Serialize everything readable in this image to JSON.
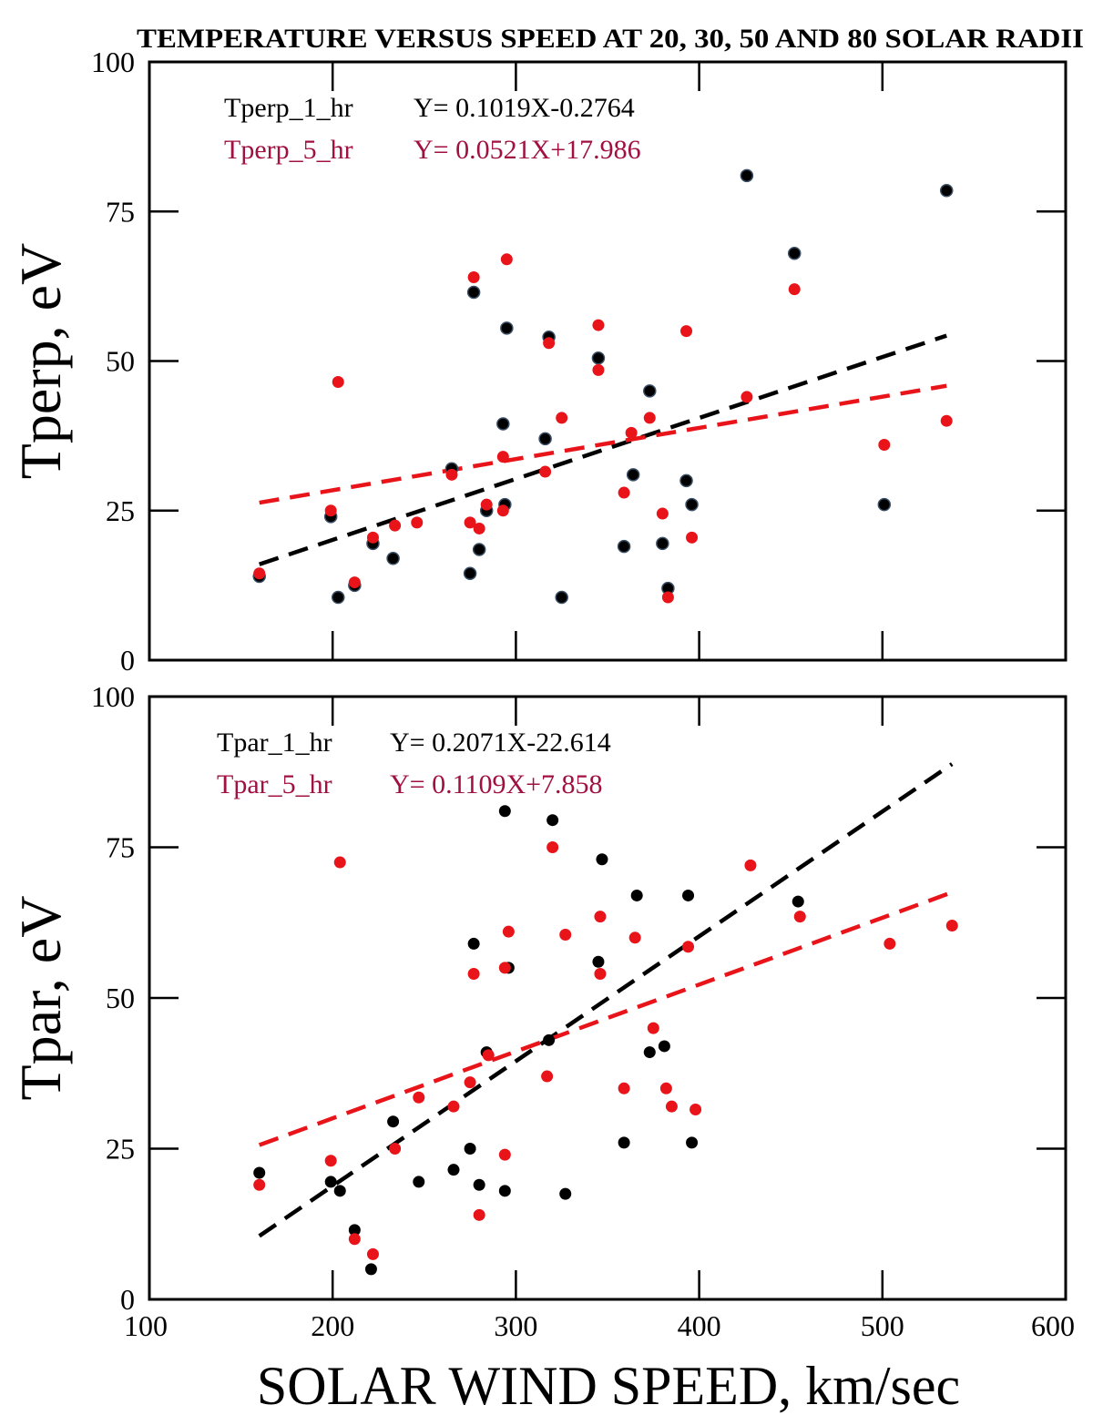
{
  "title": "TEMPERATURE VERSUS SPEED AT 20, 30, 50 AND 80 SOLAR RADII",
  "xlabel": "SOLAR WIND SPEED, km/sec",
  "colors": {
    "series_1hr": "#000000",
    "series_5hr": "#e8141a",
    "legend_5hr": "#a01040"
  },
  "chart_data": [
    {
      "type": "scatter",
      "title": "",
      "xlabel": "SOLAR WIND SPEED, km/sec",
      "ylabel": "Tperp, eV",
      "xlim": [
        100,
        600
      ],
      "ylim": [
        0,
        100
      ],
      "xticks": [
        "100",
        "200",
        "300",
        "400",
        "500",
        "600"
      ],
      "yticks": [
        "0",
        "25",
        "50",
        "75",
        "100"
      ],
      "series": [
        {
          "name": "Tperp_1_hr",
          "fit": "Y= 0.1019X-0.2764",
          "slope": 0.1019,
          "intercept": -0.2764,
          "fit_range": [
            160,
            535
          ],
          "points": [
            [
              160,
              14
            ],
            [
              199,
              24
            ],
            [
              203,
              10.5
            ],
            [
              212,
              12.5
            ],
            [
              222,
              19.5
            ],
            [
              233,
              17
            ],
            [
              265,
              32
            ],
            [
              275,
              14.5
            ],
            [
              277,
              61.5
            ],
            [
              280,
              18.5
            ],
            [
              284,
              25
            ],
            [
              293,
              39.5
            ],
            [
              294,
              26
            ],
            [
              295,
              55.5
            ],
            [
              316,
              37
            ],
            [
              318,
              54
            ],
            [
              325,
              10.5
            ],
            [
              345,
              50.5
            ],
            [
              359,
              19
            ],
            [
              364,
              31
            ],
            [
              373,
              45
            ],
            [
              380,
              19.5
            ],
            [
              383,
              12
            ],
            [
              393,
              30
            ],
            [
              396,
              26
            ],
            [
              426,
              81
            ],
            [
              452,
              68
            ],
            [
              501,
              26
            ],
            [
              535,
              78.5
            ]
          ]
        },
        {
          "name": "Tperp_5_hr",
          "fit": "Y= 0.0521X+17.986",
          "slope": 0.0521,
          "intercept": 17.986,
          "fit_range": [
            160,
            535
          ],
          "points": [
            [
              160,
              14.5
            ],
            [
              199,
              25
            ],
            [
              203,
              46.5
            ],
            [
              212,
              13
            ],
            [
              222,
              20.5
            ],
            [
              234,
              22.5
            ],
            [
              246,
              23
            ],
            [
              265,
              31
            ],
            [
              275,
              23
            ],
            [
              277,
              64
            ],
            [
              280,
              22
            ],
            [
              284,
              26
            ],
            [
              293,
              25
            ],
            [
              293,
              34
            ],
            [
              295,
              67
            ],
            [
              316,
              31.5
            ],
            [
              318,
              53
            ],
            [
              325,
              40.5
            ],
            [
              345,
              56
            ],
            [
              345,
              48.5
            ],
            [
              359,
              28
            ],
            [
              363,
              38
            ],
            [
              373,
              40.5
            ],
            [
              380,
              24.5
            ],
            [
              383,
              10.5
            ],
            [
              393,
              55
            ],
            [
              396,
              20.5
            ],
            [
              426,
              44
            ],
            [
              452,
              62
            ],
            [
              501,
              36
            ],
            [
              535,
              40
            ]
          ]
        }
      ]
    },
    {
      "type": "scatter",
      "title": "",
      "xlabel": "SOLAR WIND SPEED, km/sec",
      "ylabel": "Tpar, eV",
      "xlim": [
        100,
        600
      ],
      "ylim": [
        0,
        100
      ],
      "xticks": [
        "100",
        "200",
        "300",
        "400",
        "500",
        "600"
      ],
      "yticks": [
        "0",
        "25",
        "50",
        "75",
        "100"
      ],
      "series": [
        {
          "name": "Tpar_1_hr",
          "fit": "Y= 0.2071X-22.614",
          "slope": 0.2071,
          "intercept": -22.614,
          "fit_range": [
            160,
            538
          ],
          "points": [
            [
              160,
              21
            ],
            [
              199,
              19.5
            ],
            [
              204,
              18
            ],
            [
              212,
              11.5
            ],
            [
              221,
              5
            ],
            [
              233,
              29.5
            ],
            [
              247,
              19.5
            ],
            [
              266,
              21.5
            ],
            [
              275,
              25
            ],
            [
              277,
              59
            ],
            [
              280,
              19
            ],
            [
              284,
              41
            ],
            [
              294,
              18
            ],
            [
              294,
              81
            ],
            [
              296,
              55
            ],
            [
              318,
              43
            ],
            [
              320,
              79.5
            ],
            [
              327,
              17.5
            ],
            [
              345,
              56
            ],
            [
              347,
              73
            ],
            [
              359,
              26
            ],
            [
              366,
              67
            ],
            [
              373,
              41
            ],
            [
              381,
              42
            ],
            [
              394,
              67
            ],
            [
              396,
              26
            ],
            [
              454,
              66
            ]
          ]
        },
        {
          "name": "Tpar_5_hr",
          "fit": "Y= 0.1109X+7.858",
          "slope": 0.1109,
          "intercept": 7.858,
          "fit_range": [
            160,
            538
          ],
          "points": [
            [
              160,
              19
            ],
            [
              199,
              23
            ],
            [
              204,
              72.5
            ],
            [
              212,
              10
            ],
            [
              222,
              7.5
            ],
            [
              234,
              25
            ],
            [
              247,
              33.5
            ],
            [
              266,
              32
            ],
            [
              275,
              36
            ],
            [
              277,
              54
            ],
            [
              280,
              14
            ],
            [
              285,
              40.5
            ],
            [
              294,
              55
            ],
            [
              294,
              24
            ],
            [
              296,
              61
            ],
            [
              317,
              37
            ],
            [
              320,
              75
            ],
            [
              327,
              60.5
            ],
            [
              346,
              63.5
            ],
            [
              346,
              54
            ],
            [
              359,
              35
            ],
            [
              365,
              60
            ],
            [
              375,
              45
            ],
            [
              382,
              35
            ],
            [
              385,
              32
            ],
            [
              394,
              58.5
            ],
            [
              398,
              31.5
            ],
            [
              428,
              72
            ],
            [
              455,
              63.5
            ],
            [
              504,
              59
            ],
            [
              538,
              62
            ]
          ]
        }
      ]
    }
  ]
}
